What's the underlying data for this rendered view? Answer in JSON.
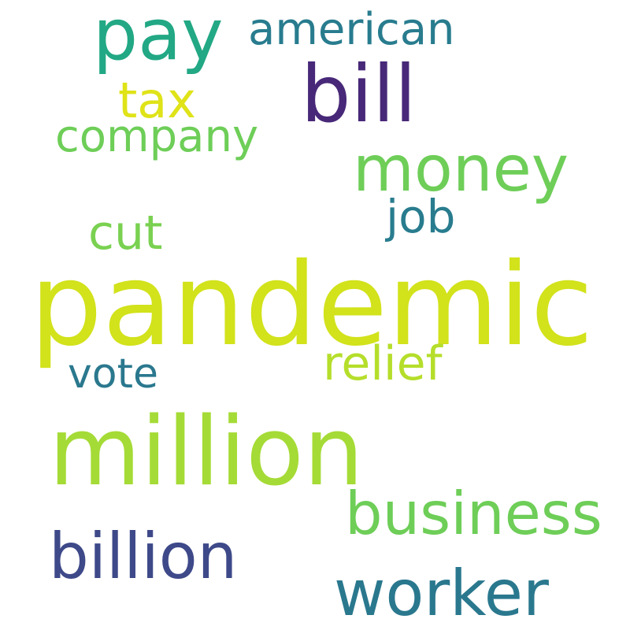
{
  "word_cloud": {
    "words": [
      {
        "key": "pandemic",
        "text": "pandemic",
        "color": "#d2e21b"
      },
      {
        "key": "million",
        "text": "million",
        "color": "#a5db36"
      },
      {
        "key": "pay",
        "text": "pay",
        "color": "#22a884"
      },
      {
        "key": "bill",
        "text": "bill",
        "color": "#482878"
      },
      {
        "key": "american",
        "text": "american",
        "color": "#287c8e"
      },
      {
        "key": "tax",
        "text": "tax",
        "color": "#dfe318"
      },
      {
        "key": "company",
        "text": "company",
        "color": "#6ece58"
      },
      {
        "key": "money",
        "text": "money",
        "color": "#6ece58"
      },
      {
        "key": "job",
        "text": "job",
        "color": "#287c8e"
      },
      {
        "key": "cut",
        "text": "cut",
        "color": "#7ad151"
      },
      {
        "key": "vote",
        "text": "vote",
        "color": "#2a788e"
      },
      {
        "key": "relief",
        "text": "relief",
        "color": "#b5de2b"
      },
      {
        "key": "business",
        "text": "business",
        "color": "#6ece58"
      },
      {
        "key": "billion",
        "text": "billion",
        "color": "#3e4989"
      },
      {
        "key": "worker",
        "text": "worker",
        "color": "#2a788e"
      }
    ]
  }
}
